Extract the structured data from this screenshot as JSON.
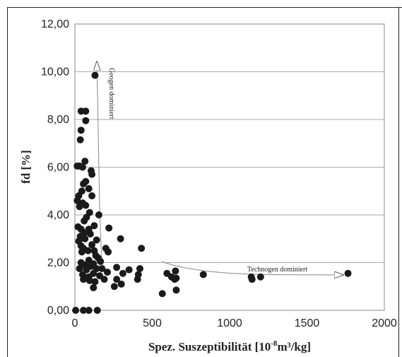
{
  "chart_data": {
    "type": "scatter",
    "title": "",
    "xlabel_main": "Spez. Suszeptibilität [10",
    "xlabel_sup1": "-8",
    "xlabel_mid": "m³/kg]",
    "ylabel": "fd [%]",
    "xlim": [
      0,
      2000
    ],
    "ylim": [
      0,
      12
    ],
    "x_ticks": [
      "0",
      "500",
      "1000",
      "1500",
      "2000"
    ],
    "y_ticks": [
      "0,00",
      "2,00",
      "4,00",
      "6,00",
      "8,00",
      "10,00",
      "12,00"
    ],
    "grid": "horizontal",
    "legend": "none",
    "marker_color": "#1a1a1a",
    "points": [
      [
        5,
        0.0
      ],
      [
        55,
        0.0
      ],
      [
        90,
        0.0
      ],
      [
        145,
        0.0
      ],
      [
        130,
        9.85
      ],
      [
        40,
        8.35
      ],
      [
        70,
        8.35
      ],
      [
        70,
        7.95
      ],
      [
        40,
        7.55
      ],
      [
        35,
        7.15
      ],
      [
        15,
        6.05
      ],
      [
        30,
        6.05
      ],
      [
        50,
        6.0
      ],
      [
        65,
        6.25
      ],
      [
        105,
        5.85
      ],
      [
        110,
        5.7
      ],
      [
        55,
        5.3
      ],
      [
        70,
        5.4
      ],
      [
        90,
        5.1
      ],
      [
        45,
        5.0
      ],
      [
        110,
        4.8
      ],
      [
        25,
        4.8
      ],
      [
        15,
        4.6
      ],
      [
        50,
        4.5
      ],
      [
        70,
        4.4
      ],
      [
        30,
        4.35
      ],
      [
        95,
        4.1
      ],
      [
        155,
        4.0
      ],
      [
        75,
        3.9
      ],
      [
        60,
        3.75
      ],
      [
        125,
        3.55
      ],
      [
        20,
        3.5
      ],
      [
        40,
        3.4
      ],
      [
        90,
        3.4
      ],
      [
        60,
        3.25
      ],
      [
        100,
        3.2
      ],
      [
        220,
        3.45
      ],
      [
        35,
        3.1
      ],
      [
        25,
        2.9
      ],
      [
        65,
        3.0
      ],
      [
        140,
        2.95
      ],
      [
        295,
        3.0
      ],
      [
        40,
        2.7
      ],
      [
        55,
        2.6
      ],
      [
        110,
        2.75
      ],
      [
        85,
        2.5
      ],
      [
        45,
        2.45
      ],
      [
        125,
        2.5
      ],
      [
        200,
        2.6
      ],
      [
        215,
        2.45
      ],
      [
        430,
        2.6
      ],
      [
        135,
        2.3
      ],
      [
        150,
        2.2
      ],
      [
        40,
        2.0
      ],
      [
        65,
        1.9
      ],
      [
        90,
        2.1
      ],
      [
        105,
        1.85
      ],
      [
        120,
        1.95
      ],
      [
        165,
        2.05
      ],
      [
        30,
        1.75
      ],
      [
        75,
        1.7
      ],
      [
        140,
        1.75
      ],
      [
        175,
        1.75
      ],
      [
        210,
        1.6
      ],
      [
        270,
        1.8
      ],
      [
        350,
        1.7
      ],
      [
        420,
        1.75
      ],
      [
        50,
        1.5
      ],
      [
        90,
        1.4
      ],
      [
        120,
        1.55
      ],
      [
        160,
        1.45
      ],
      [
        310,
        1.55
      ],
      [
        410,
        1.5
      ],
      [
        55,
        1.3
      ],
      [
        95,
        1.25
      ],
      [
        130,
        1.2
      ],
      [
        190,
        1.3
      ],
      [
        270,
        1.3
      ],
      [
        300,
        1.1
      ],
      [
        405,
        1.3
      ],
      [
        120,
        0.95
      ],
      [
        255,
        1.0
      ],
      [
        595,
        1.55
      ],
      [
        625,
        1.4
      ],
      [
        650,
        1.65
      ],
      [
        655,
        1.35
      ],
      [
        645,
        1.3
      ],
      [
        565,
        0.7
      ],
      [
        655,
        0.85
      ],
      [
        830,
        1.5
      ],
      [
        1140,
        1.4
      ],
      [
        1145,
        1.3
      ],
      [
        1200,
        1.4
      ],
      [
        1765,
        1.55
      ]
    ],
    "annotations": [
      {
        "text": "Geogen dominiert"
      },
      {
        "text": "Technogen dominiert"
      }
    ]
  }
}
